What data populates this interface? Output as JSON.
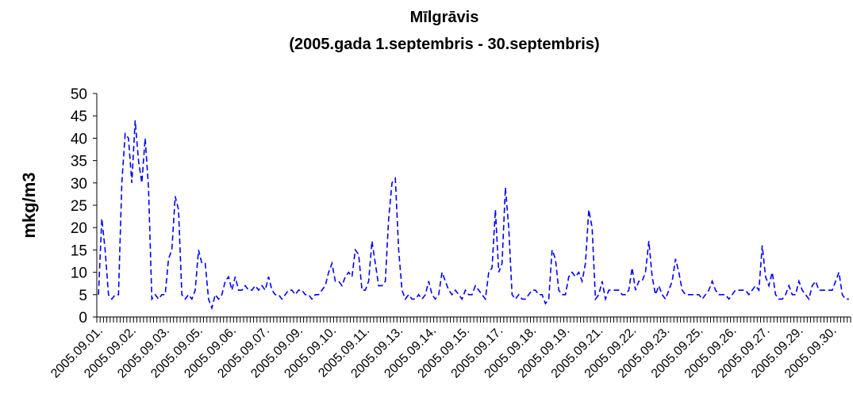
{
  "chart_data": {
    "type": "line",
    "title": "Mīlgrāvis",
    "subtitle": "(2005.gada 1.septembris - 30.septembris)",
    "y_label": "mkg/m3",
    "categories": [
      "2005.09.01.",
      null,
      null,
      null,
      null,
      null,
      null,
      null,
      null,
      null,
      "2005.09.02.",
      null,
      null,
      null,
      null,
      null,
      null,
      null,
      null,
      null,
      "2005.09.03.",
      null,
      null,
      null,
      null,
      null,
      null,
      null,
      null,
      null,
      "2005.09.05.",
      null,
      null,
      null,
      null,
      null,
      null,
      null,
      null,
      null,
      "2005.09.06.",
      null,
      null,
      null,
      null,
      null,
      null,
      null,
      null,
      null,
      "2005.09.07.",
      null,
      null,
      null,
      null,
      null,
      null,
      null,
      null,
      null,
      "2005.09.09.",
      null,
      null,
      null,
      null,
      null,
      null,
      null,
      null,
      null,
      "2005.09.10.",
      null,
      null,
      null,
      null,
      null,
      null,
      null,
      null,
      null,
      "2005.09.11.",
      null,
      null,
      null,
      null,
      null,
      null,
      null,
      null,
      null,
      "2005.09.13.",
      null,
      null,
      null,
      null,
      null,
      null,
      null,
      null,
      null,
      "2005.09.14.",
      null,
      null,
      null,
      null,
      null,
      null,
      null,
      null,
      null,
      "2005.09.15.",
      null,
      null,
      null,
      null,
      null,
      null,
      null,
      null,
      null,
      "2005.09.17.",
      null,
      null,
      null,
      null,
      null,
      null,
      null,
      null,
      null,
      "2005.09.18.",
      null,
      null,
      null,
      null,
      null,
      null,
      null,
      null,
      null,
      "2005.09.19.",
      null,
      null,
      null,
      null,
      null,
      null,
      null,
      null,
      null,
      "2005.09.21.",
      null,
      null,
      null,
      null,
      null,
      null,
      null,
      null,
      null,
      "2005.09.22.",
      null,
      null,
      null,
      null,
      null,
      null,
      null,
      null,
      null,
      "2005.09.23.",
      null,
      null,
      null,
      null,
      null,
      null,
      null,
      null,
      null,
      "2005.09.25.",
      null,
      null,
      null,
      null,
      null,
      null,
      null,
      null,
      null,
      "2005.09.26.",
      null,
      null,
      null,
      null,
      null,
      null,
      null,
      null,
      null,
      "2005.09.27.",
      null,
      null,
      null,
      null,
      null,
      null,
      null,
      null,
      null,
      "2005.09.29.",
      null,
      null,
      null,
      null,
      null,
      null,
      null,
      null,
      null,
      "2005.09.30.",
      null,
      null,
      null,
      null,
      null
    ],
    "series": [
      {
        "name": "Mīlgrāvis",
        "color": "#0000ff",
        "values": [
          5,
          22,
          15,
          5,
          4,
          5,
          5,
          30,
          41,
          40,
          30,
          44,
          35,
          30,
          40,
          29,
          4,
          5,
          4,
          5,
          5,
          13,
          15,
          27,
          24,
          5,
          4,
          5,
          4,
          6,
          15,
          12,
          12,
          4,
          2,
          5,
          4,
          5,
          8,
          9,
          6,
          9,
          6,
          6,
          7,
          6,
          6,
          7,
          6,
          7,
          6,
          9,
          6,
          5,
          5,
          4,
          5,
          6,
          6,
          5,
          6,
          6,
          5,
          5,
          4,
          5,
          5,
          6,
          7,
          10,
          12,
          8,
          8,
          7,
          9,
          10,
          9,
          15,
          14,
          6,
          6,
          8,
          17,
          12,
          7,
          7,
          8,
          22,
          30,
          31,
          15,
          6,
          4,
          5,
          4,
          4,
          5,
          4,
          5,
          8,
          5,
          4,
          5,
          10,
          8,
          6,
          5,
          6,
          5,
          4,
          6,
          5,
          5,
          7,
          6,
          5,
          4,
          10,
          11,
          24,
          10,
          12,
          29,
          20,
          5,
          4,
          5,
          4,
          4,
          5,
          6,
          6,
          5,
          5,
          3,
          4,
          15,
          13,
          6,
          5,
          5,
          9,
          10,
          9,
          10,
          8,
          12,
          24,
          20,
          4,
          5,
          8,
          4,
          6,
          6,
          6,
          6,
          5,
          5,
          6,
          11,
          6,
          8,
          8,
          10,
          17,
          9,
          5,
          7,
          5,
          4,
          6,
          8,
          13,
          10,
          6,
          5,
          5,
          5,
          5,
          5,
          4,
          5,
          6,
          8,
          6,
          5,
          5,
          5,
          4,
          5,
          6,
          6,
          6,
          6,
          5,
          6,
          7,
          6,
          16,
          9,
          7,
          10,
          5,
          4,
          4,
          5,
          7,
          5,
          5,
          8,
          6,
          5,
          4,
          7,
          8,
          6,
          6,
          6,
          6,
          6,
          8,
          10,
          5,
          4,
          4
        ]
      }
    ],
    "ylim": [
      0,
      50
    ],
    "yticks": [
      0,
      5,
      10,
      15,
      20,
      25,
      30,
      35,
      40,
      45,
      50
    ],
    "grid": false
  }
}
